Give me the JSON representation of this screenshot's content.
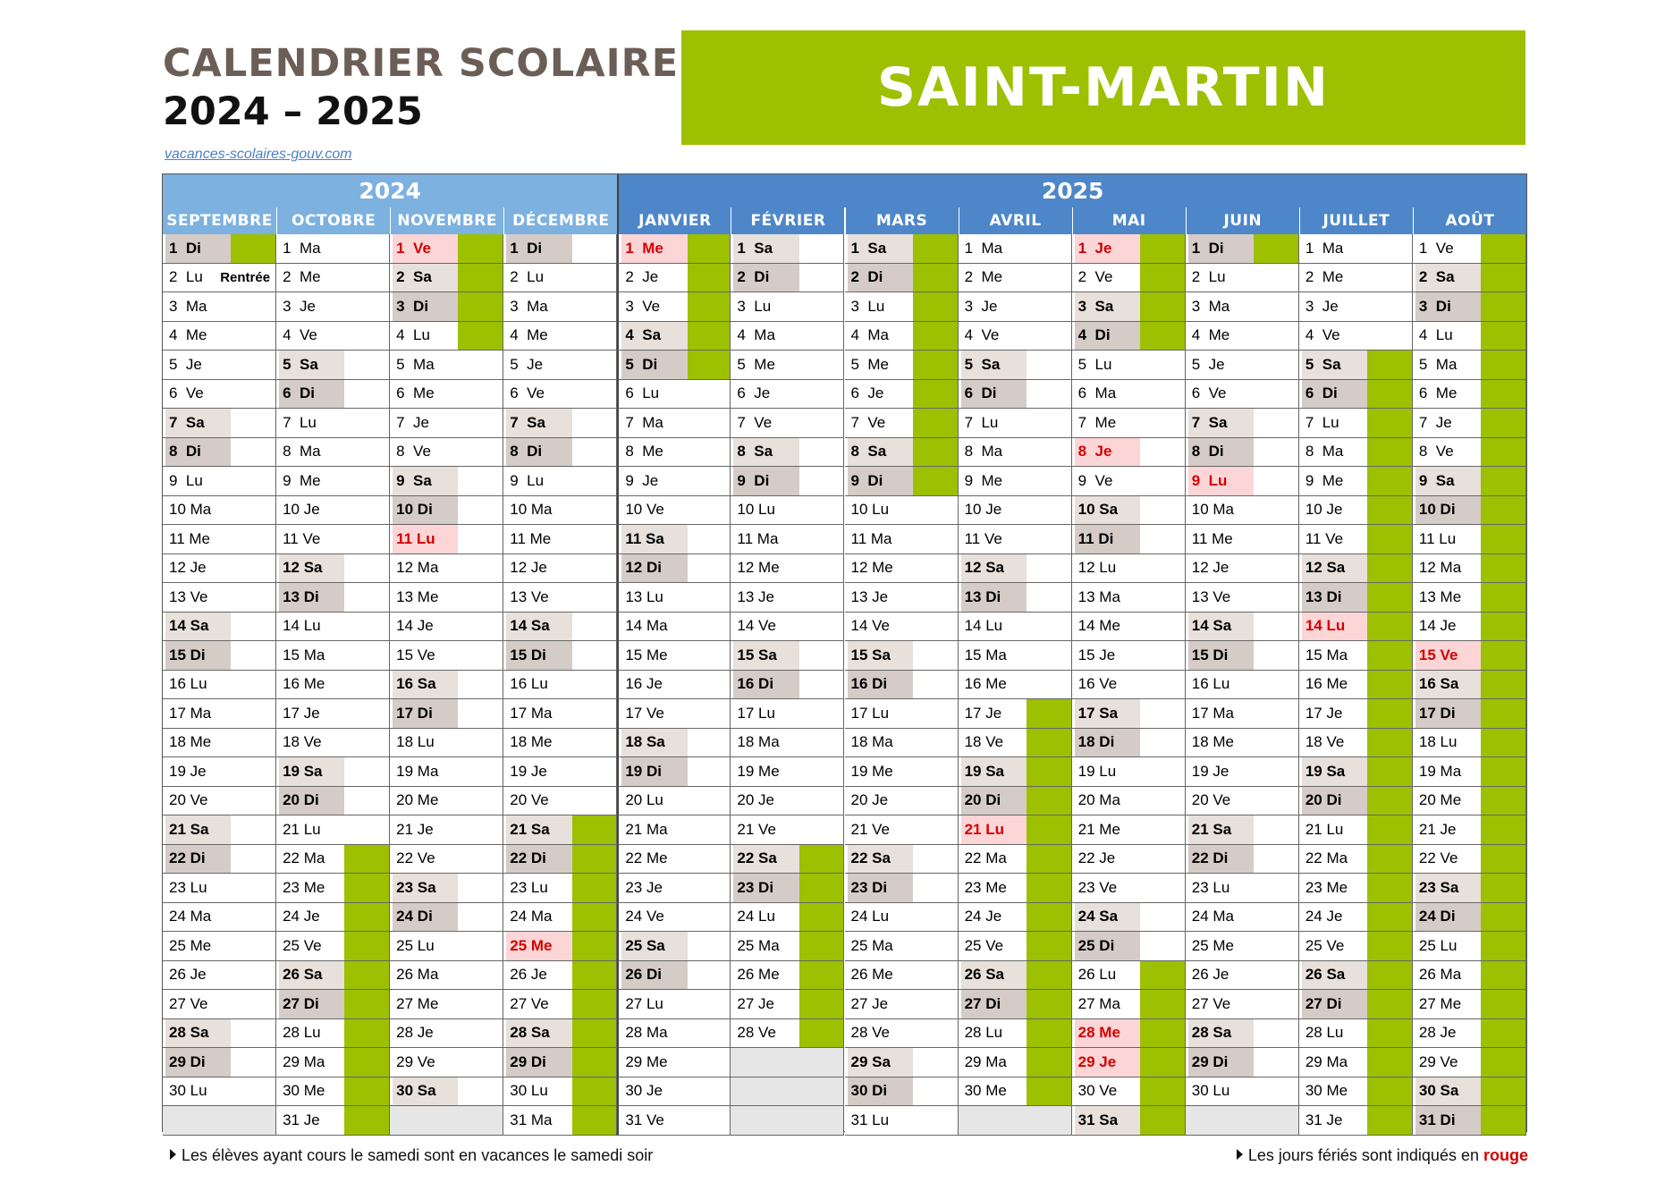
{
  "title_line1": "CALENDRIER SCOLAIRE",
  "title_line2": "2024 – 2025",
  "source_link": "vacances-scolaires-gouv.com",
  "region": "SAINT-MARTIN",
  "colors": {
    "green": "#9dc000",
    "year2024": "#7cb1e0",
    "year2025": "#4e87c9",
    "holiday_red": "#d40000"
  },
  "years": [
    {
      "label": "2024",
      "months": 4
    },
    {
      "label": "2025",
      "months": 8
    }
  ],
  "note_rentree": "Rentrée",
  "footer_left": "Les élèves ayant cours le samedi sont en vacances le samedi soir",
  "footer_right_prefix": "Les jours fériés sont indiqués en ",
  "footer_right_red": "rouge",
  "months": [
    {
      "name": "SEPTEMBRE",
      "days": 30,
      "start": 6,
      "holidays": [],
      "vacation": [
        [
          1,
          1
        ]
      ]
    },
    {
      "name": "OCTOBRE",
      "days": 31,
      "start": 1,
      "holidays": [],
      "vacation": [
        [
          22,
          31
        ]
      ]
    },
    {
      "name": "NOVEMBRE",
      "days": 30,
      "start": 4,
      "holidays": [
        1,
        11
      ],
      "vacation": [
        [
          1,
          4
        ]
      ]
    },
    {
      "name": "DÉCEMBRE",
      "days": 31,
      "start": 6,
      "holidays": [
        25
      ],
      "vacation": [
        [
          21,
          31
        ]
      ]
    },
    {
      "name": "JANVIER",
      "days": 31,
      "start": 2,
      "holidays": [
        1
      ],
      "vacation": [
        [
          1,
          5
        ]
      ]
    },
    {
      "name": "FÉVRIER",
      "days": 28,
      "start": 5,
      "holidays": [],
      "vacation": [
        [
          22,
          28
        ]
      ]
    },
    {
      "name": "MARS",
      "days": 31,
      "start": 5,
      "holidays": [],
      "vacation": [
        [
          1,
          9
        ]
      ]
    },
    {
      "name": "AVRIL",
      "days": 30,
      "start": 1,
      "holidays": [
        21
      ],
      "vacation": [
        [
          17,
          30
        ]
      ]
    },
    {
      "name": "MAI",
      "days": 31,
      "start": 3,
      "holidays": [
        1,
        8,
        28,
        29
      ],
      "vacation": [
        [
          1,
          4
        ],
        [
          26,
          31
        ]
      ]
    },
    {
      "name": "JUIN",
      "days": 30,
      "start": 6,
      "holidays": [
        9
      ],
      "vacation": [
        [
          1,
          1
        ]
      ]
    },
    {
      "name": "JUILLET",
      "days": 31,
      "start": 1,
      "holidays": [
        14
      ],
      "vacation": [
        [
          5,
          31
        ]
      ]
    },
    {
      "name": "AOÛT",
      "days": 31,
      "start": 4,
      "holidays": [
        15
      ],
      "vacation": [
        [
          1,
          31
        ]
      ]
    }
  ],
  "day_abbrev": [
    "Lu",
    "Ma",
    "Me",
    "Je",
    "Ve",
    "Sa",
    "Di"
  ]
}
